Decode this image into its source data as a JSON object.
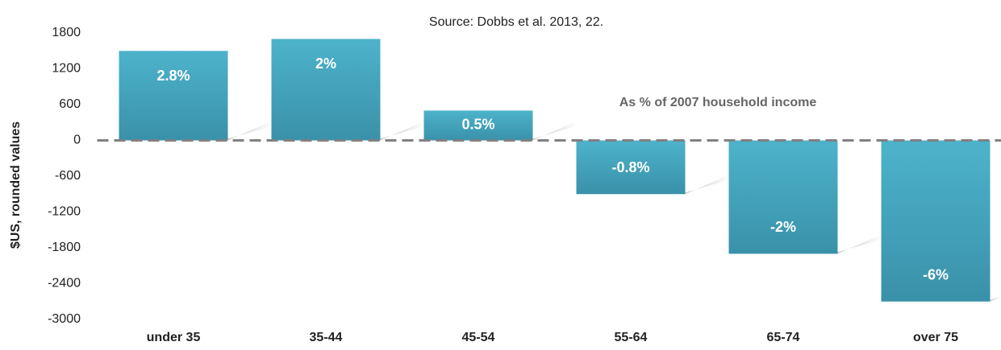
{
  "chart_data": {
    "type": "bar",
    "subtitle": "Source: Dobbs et al. 2013, 22.",
    "y_label": "$US, rounded values",
    "annotation": "As % of 2007 household income",
    "categories": [
      "under 35",
      "35-44",
      "45-54",
      "55-64",
      "65-74",
      "over 75"
    ],
    "values": [
      1500,
      1700,
      500,
      -900,
      -1900,
      -2700
    ],
    "bar_labels": [
      "2.8%",
      "2%",
      "0.5%",
      "-0.8%",
      "-2%",
      "-6%"
    ],
    "color": "#42a3bd",
    "ylim": [
      -3000,
      1800
    ],
    "yticks": [
      -3000,
      -2400,
      -1800,
      -1200,
      -600,
      0,
      600,
      1200,
      1800
    ]
  }
}
